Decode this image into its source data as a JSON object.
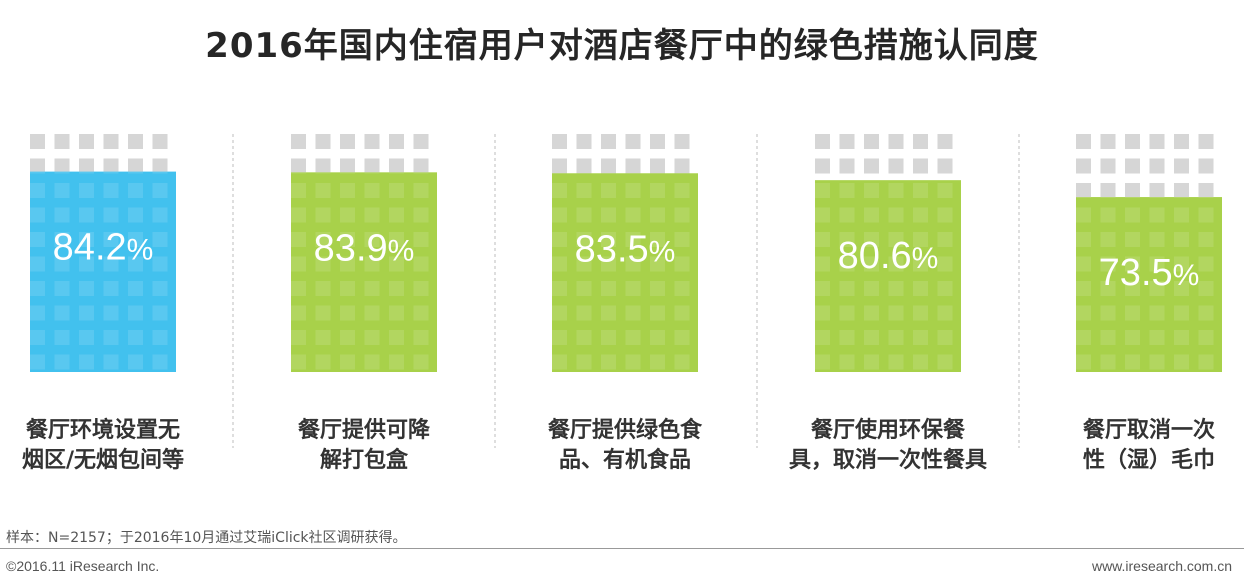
{
  "title": "2016年国内住宿用户对酒店餐厅中的绿色措施认同度",
  "chart_data": {
    "type": "bar",
    "categories": [
      [
        "餐厅环境设置无",
        "烟区/无烟包间等"
      ],
      [
        "餐厅提供可降",
        "解打包盒"
      ],
      [
        "餐厅提供绿色食",
        "品、有机食品"
      ],
      [
        "餐厅使用环保餐",
        "具，取消一次性餐具"
      ],
      [
        "餐厅取消一次",
        "性（湿）毛巾"
      ]
    ],
    "values": [
      84.2,
      83.9,
      83.5,
      80.6,
      73.5
    ],
    "value_labels": [
      "84.2%",
      "83.9%",
      "83.5%",
      "80.6%",
      "73.5%"
    ],
    "ylim": [
      0,
      100
    ],
    "colors": [
      "#42c1ee",
      "#a8d14a",
      "#a8d14a",
      "#a8d14a",
      "#a8d14a"
    ],
    "background_color": "#d6d6d6"
  },
  "footer": {
    "note": "样本：N=2157；于2016年10月通过艾瑞iClick社区调研获得。",
    "copyright": "©2016.11 iResearch Inc.",
    "website": "www.iresearch.com.cn"
  }
}
